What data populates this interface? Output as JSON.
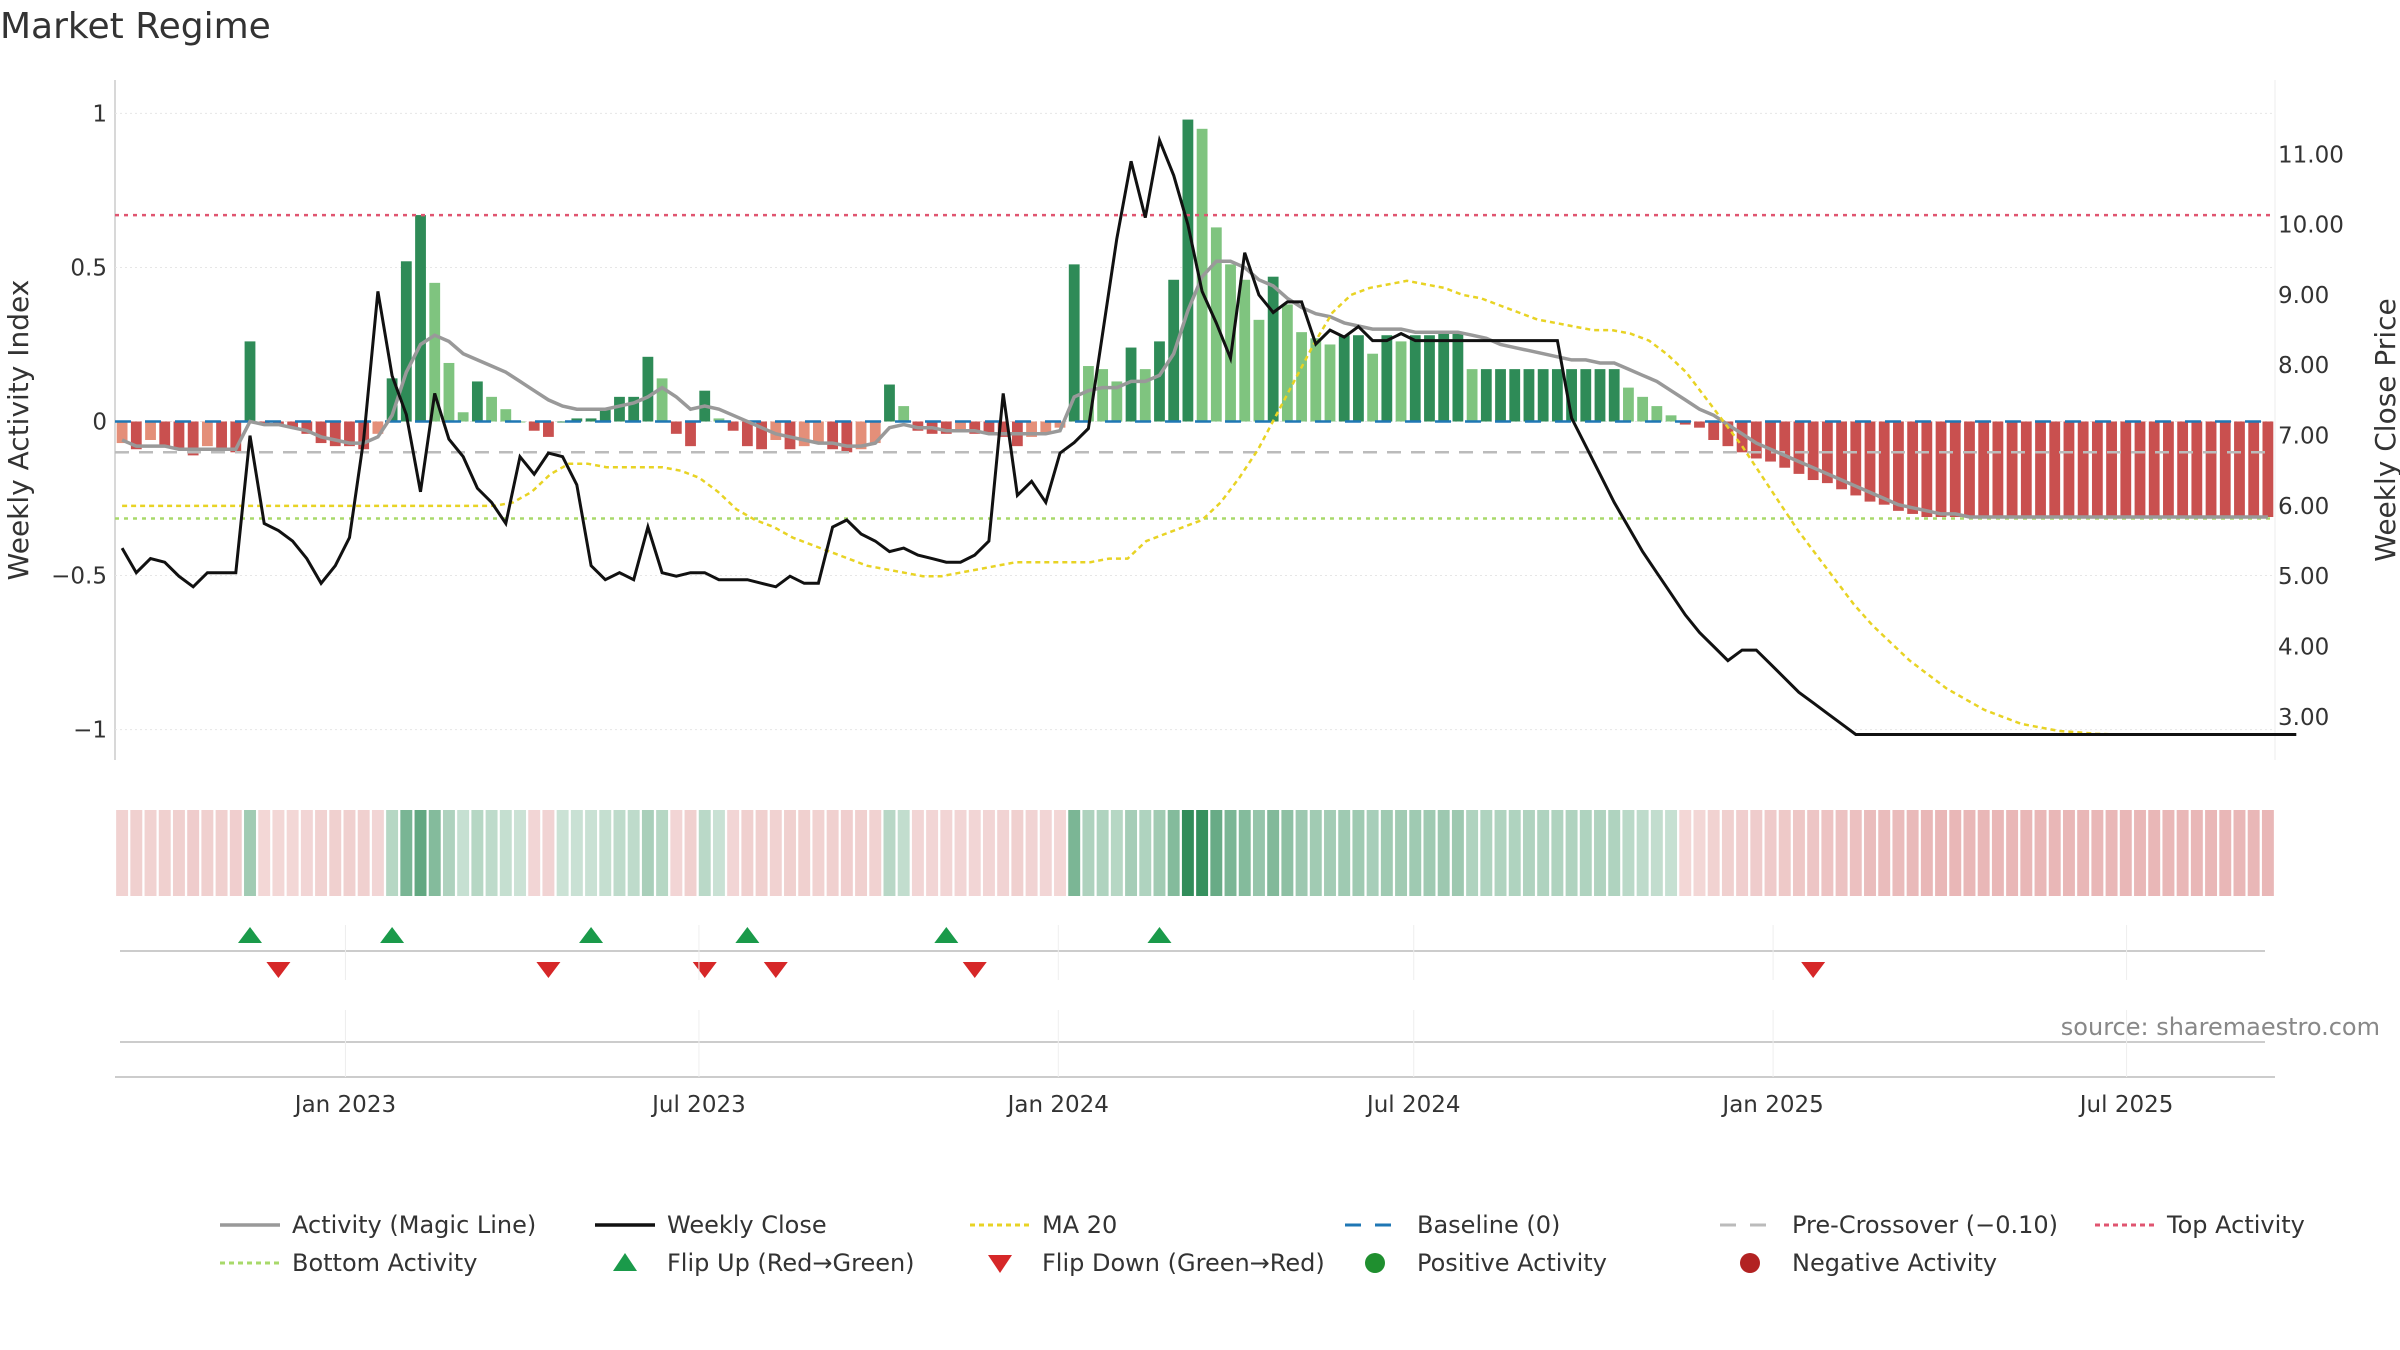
{
  "title": "Market Regime",
  "source": "source: sharemaestro.com",
  "colors": {
    "pos_strong": "#2e8b57",
    "pos_light": "#7fc47f",
    "neg_strong": "#c9504f",
    "neg_light": "#e48f79",
    "activity_line": "#999999",
    "close_line": "#111111",
    "ma20": "#e8d324",
    "baseline": "#1f77b4",
    "pre_crossover": "#bbbbbb",
    "top_activity": "#e05570",
    "bottom_activity": "#a8d96a",
    "flip_up": "#1a9a4a",
    "flip_down": "#d62728",
    "positive_dot": "#1f8f2f",
    "negative_dot": "#b22222"
  },
  "chart_data": {
    "type": "bar",
    "left_axis": {
      "label": "Weekly Activity Index",
      "ylim": [
        -1.05,
        1.05
      ],
      "ticks": [
        "1",
        "0.5",
        "0",
        "−0.5",
        "−1"
      ],
      "tick_values": [
        1,
        0.5,
        0,
        -0.5,
        -1
      ]
    },
    "right_axis": {
      "label": "Weekly Close Price",
      "ylim": [
        2.6,
        11.8
      ],
      "ticks": [
        "11.00",
        "10.00",
        "9.00",
        "8.00",
        "7.00",
        "6.00",
        "5.00",
        "4.00",
        "3.00"
      ],
      "tick_values": [
        11,
        10,
        9,
        8,
        7,
        6,
        5,
        4,
        3
      ]
    },
    "x_axis": {
      "start": "2022-09-05",
      "end": "2025-09-15",
      "tick_labels": [
        "Jan 2023",
        "Jul 2023",
        "Jan 2024",
        "Jul 2024",
        "Jan 2025",
        "Jul 2025"
      ],
      "tick_dates": [
        "2023-01-01",
        "2023-07-01",
        "2024-01-01",
        "2024-07-01",
        "2025-01-01",
        "2025-07-01"
      ]
    },
    "reference_lines": {
      "top_activity": 0.67,
      "bottom_activity": -0.315,
      "pre_crossover": -0.1,
      "baseline": 0
    },
    "activity_bars": [
      -0.07,
      -0.09,
      -0.06,
      -0.08,
      -0.09,
      -0.11,
      -0.08,
      -0.09,
      -0.1,
      0.26,
      -0.01,
      -0.01,
      -0.02,
      -0.04,
      -0.07,
      -0.08,
      -0.08,
      -0.09,
      -0.04,
      0.14,
      0.52,
      0.67,
      0.45,
      0.19,
      0.03,
      0.13,
      0.08,
      0.04,
      0,
      -0.03,
      -0.05,
      0,
      0.01,
      0.01,
      0.04,
      0.08,
      0.08,
      0.21,
      0.14,
      -0.04,
      -0.08,
      0.1,
      0.01,
      -0.03,
      -0.08,
      -0.09,
      -0.06,
      -0.09,
      -0.08,
      -0.07,
      -0.09,
      -0.1,
      -0.09,
      -0.07,
      0.12,
      0.05,
      -0.03,
      -0.04,
      -0.04,
      -0.03,
      -0.04,
      -0.04,
      -0.05,
      -0.08,
      -0.05,
      -0.04,
      -0.02,
      0.51,
      0.18,
      0.17,
      0.13,
      0.24,
      0.17,
      0.26,
      0.46,
      0.98,
      0.95,
      0.63,
      0.51,
      0.46,
      0.33,
      0.47,
      0.38,
      0.29,
      0.27,
      0.25,
      0.28,
      0.28,
      0.22,
      0.28,
      0.26,
      0.28,
      0.28,
      0.29,
      0.29,
      0.17,
      0.17,
      0.17,
      0.17,
      0.17,
      0.17,
      0.17,
      0.17,
      0.17,
      0.17,
      0.17,
      0.11,
      0.08,
      0.05,
      0.02,
      -0.01,
      -0.02,
      -0.06,
      -0.08,
      -0.1,
      -0.12,
      -0.13,
      -0.15,
      -0.17,
      -0.19,
      -0.2,
      -0.22,
      -0.24,
      -0.26,
      -0.27,
      -0.29,
      -0.3,
      -0.31,
      -0.31,
      -0.31,
      -0.31,
      -0.31,
      -0.31,
      -0.31,
      -0.31,
      -0.31,
      -0.31,
      -0.31,
      -0.31,
      -0.31,
      -0.31,
      -0.31,
      -0.31,
      -0.31,
      -0.31,
      -0.31,
      -0.31,
      -0.31,
      -0.31,
      -0.31,
      -0.31,
      -0.31
    ],
    "activity_line": [
      -0.06,
      -0.08,
      -0.08,
      -0.08,
      -0.09,
      -0.09,
      -0.09,
      -0.09,
      -0.09,
      0,
      -0.01,
      -0.01,
      -0.02,
      -0.03,
      -0.05,
      -0.06,
      -0.07,
      -0.07,
      -0.05,
      0.02,
      0.16,
      0.25,
      0.28,
      0.26,
      0.22,
      0.2,
      0.18,
      0.16,
      0.13,
      0.1,
      0.07,
      0.05,
      0.04,
      0.04,
      0.04,
      0.05,
      0.06,
      0.08,
      0.11,
      0.08,
      0.04,
      0.05,
      0.04,
      0.02,
      0,
      -0.02,
      -0.04,
      -0.05,
      -0.06,
      -0.07,
      -0.07,
      -0.08,
      -0.08,
      -0.07,
      -0.02,
      -0.01,
      -0.02,
      -0.02,
      -0.03,
      -0.03,
      -0.03,
      -0.04,
      -0.04,
      -0.04,
      -0.04,
      -0.04,
      -0.03,
      0.08,
      0.1,
      0.11,
      0.11,
      0.13,
      0.13,
      0.15,
      0.22,
      0.36,
      0.47,
      0.52,
      0.52,
      0.5,
      0.46,
      0.44,
      0.4,
      0.37,
      0.35,
      0.34,
      0.32,
      0.31,
      0.3,
      0.3,
      0.3,
      0.29,
      0.29,
      0.29,
      0.29,
      0.28,
      0.27,
      0.25,
      0.24,
      0.23,
      0.22,
      0.21,
      0.2,
      0.2,
      0.19,
      0.19,
      0.17,
      0.15,
      0.13,
      0.1,
      0.07,
      0.04,
      0.02,
      -0.01,
      -0.04,
      -0.07,
      -0.09,
      -0.11,
      -0.13,
      -0.15,
      -0.17,
      -0.19,
      -0.21,
      -0.23,
      -0.25,
      -0.27,
      -0.28,
      -0.29,
      -0.3,
      -0.3,
      -0.31,
      -0.31,
      -0.31,
      -0.31,
      -0.31,
      -0.31,
      -0.31,
      -0.31,
      -0.31,
      -0.31,
      -0.31,
      -0.31,
      -0.31,
      -0.31,
      -0.31,
      -0.31,
      -0.31,
      -0.31,
      -0.31,
      -0.31,
      -0.31,
      -0.31
    ],
    "weekly_close": [
      5.4,
      5.05,
      5.25,
      5.2,
      5.0,
      4.85,
      5.05,
      5.05,
      5.05,
      7.0,
      5.75,
      5.65,
      5.5,
      5.25,
      4.9,
      5.15,
      5.55,
      6.95,
      9.05,
      7.85,
      7.3,
      6.2,
      7.6,
      6.95,
      6.7,
      6.25,
      6.05,
      5.75,
      6.7,
      6.45,
      6.75,
      6.7,
      6.3,
      5.15,
      4.95,
      5.05,
      4.95,
      5.7,
      5.05,
      5.0,
      5.05,
      5.05,
      4.95,
      4.95,
      4.95,
      4.9,
      4.85,
      5.0,
      4.9,
      4.9,
      5.7,
      5.8,
      5.6,
      5.5,
      5.35,
      5.4,
      5.3,
      5.25,
      5.2,
      5.2,
      5.3,
      5.5,
      7.6,
      6.15,
      6.35,
      6.05,
      6.75,
      6.9,
      7.1,
      8.45,
      9.8,
      10.9,
      10.1,
      11.2,
      10.7,
      10.0,
      9.05,
      8.6,
      8.1,
      9.6,
      9.0,
      8.75,
      8.9,
      8.9,
      8.3,
      8.5,
      8.4,
      8.55,
      8.35,
      8.35,
      8.45,
      8.35,
      8.35,
      8.35,
      8.35,
      8.35,
      8.35,
      8.35,
      8.35,
      8.35,
      8.35,
      8.35,
      7.25,
      6.85,
      6.45,
      6.05,
      5.7,
      5.35,
      5.05,
      4.75,
      4.45,
      4.2,
      4.0,
      3.8,
      3.95,
      3.95,
      3.75,
      3.55,
      3.35,
      3.2,
      3.05,
      2.9,
      2.75,
      2.75,
      2.75,
      2.75,
      2.75,
      2.75,
      2.75,
      2.75,
      2.75,
      2.75,
      2.75,
      2.75,
      2.75,
      2.75,
      2.75,
      2.75,
      2.75,
      2.75,
      2.75,
      2.75,
      2.75,
      2.75,
      2.75,
      2.75,
      2.75,
      2.75,
      2.75,
      2.75,
      2.75,
      2.75,
      2.75,
      2.75
    ],
    "ma20": [
      6.0,
      6.0,
      6.0,
      6.0,
      6.0,
      6.0,
      6.0,
      6.0,
      6.0,
      6.0,
      6.0,
      6.0,
      6.0,
      6.0,
      6.0,
      6.0,
      6.0,
      6.0,
      6.0,
      6.0,
      6.0,
      6.05,
      6.2,
      6.45,
      6.6,
      6.6,
      6.55,
      6.55,
      6.55,
      6.55,
      6.5,
      6.4,
      6.2,
      5.95,
      5.8,
      5.7,
      5.55,
      5.45,
      5.35,
      5.25,
      5.15,
      5.1,
      5.05,
      5.0,
      5.0,
      5.05,
      5.1,
      5.15,
      5.2,
      5.2,
      5.2,
      5.2,
      5.2,
      5.25,
      5.25,
      5.5,
      5.6,
      5.7,
      5.8,
      6.05,
      6.4,
      6.8,
      7.3,
      7.8,
      8.3,
      8.75,
      9.0,
      9.1,
      9.15,
      9.2,
      9.15,
      9.1,
      9.0,
      8.95,
      8.85,
      8.75,
      8.65,
      8.6,
      8.55,
      8.5,
      8.5,
      8.45,
      8.35,
      8.15,
      7.9,
      7.55,
      7.2,
      6.85,
      6.45,
      6.05,
      5.65,
      5.3,
      4.95,
      4.6,
      4.3,
      4.05,
      3.8,
      3.6,
      3.4,
      3.25,
      3.1,
      3.0,
      2.9,
      2.85,
      2.8,
      2.78,
      2.76,
      2.75,
      2.75,
      2.75,
      2.75,
      2.75,
      2.75,
      2.75,
      2.75,
      2.75
    ],
    "ma20_start_week": 0,
    "flip_up_weeks": [
      9,
      19,
      33,
      44,
      58,
      73
    ],
    "flip_down_weeks": [
      11,
      30,
      41,
      46,
      60,
      119
    ],
    "legend": [
      {
        "label": "Activity (Magic Line)",
        "kind": "line",
        "color_key": "activity_line"
      },
      {
        "label": "Weekly Close",
        "kind": "line",
        "color_key": "close_line"
      },
      {
        "label": "MA 20",
        "kind": "dotted",
        "color_key": "ma20"
      },
      {
        "label": "Baseline (0)",
        "kind": "dashed",
        "color_key": "baseline"
      },
      {
        "label": "Pre-Crossover (−0.10)",
        "kind": "dashed",
        "color_key": "pre_crossover"
      },
      {
        "label": "Top Activity",
        "kind": "dotted",
        "color_key": "top_activity"
      },
      {
        "label": "Bottom Activity",
        "kind": "dotted",
        "color_key": "bottom_activity"
      },
      {
        "label": "Flip Up (Red→Green)",
        "kind": "triangle-up",
        "color_key": "flip_up"
      },
      {
        "label": "Flip Down (Green→Red)",
        "kind": "triangle-down",
        "color_key": "flip_down"
      },
      {
        "label": "Positive Activity",
        "kind": "dot",
        "color_key": "positive_dot"
      },
      {
        "label": "Negative Activity",
        "kind": "dot",
        "color_key": "negative_dot"
      }
    ]
  }
}
